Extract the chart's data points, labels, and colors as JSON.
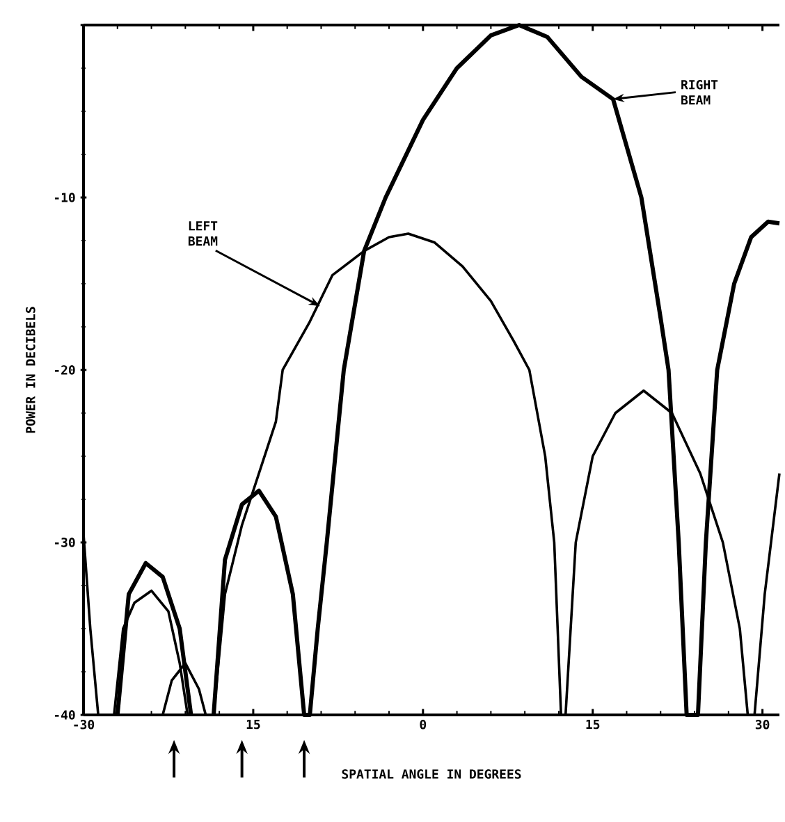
{
  "chart_data": {
    "type": "line",
    "xlabel": "SPATIAL ANGLE IN DEGREES",
    "ylabel": "POWER IN DECIBELS",
    "xlim": [
      -30,
      31.5
    ],
    "ylim": [
      -40,
      0
    ],
    "xticks": [
      -30,
      {
        "value": -15,
        "label": "15"
      },
      0,
      15,
      30
    ],
    "yticks": [
      {
        "value": 0,
        "label": null
      },
      -10,
      -20,
      -30,
      -40
    ],
    "grid": false,
    "marker": "none",
    "series": [
      {
        "color": "#000000",
        "line_style": "solid",
        "x": [
          -30,
          -29.4,
          -28.7,
          null,
          -27.3,
          -26.5,
          -25.5,
          -24,
          -22.5,
          -21.5,
          -20.8,
          null,
          -23,
          -22.2,
          -21,
          -19.8,
          -19.2,
          null,
          -18.5,
          -17.5,
          -16,
          -15,
          -13,
          -12.4,
          -10,
          -8,
          -5.2,
          -3,
          -1.3,
          1,
          3.5,
          6,
          8,
          9.4,
          10.8,
          11.6,
          12.2,
          12.6,
          13.5,
          15,
          17,
          19.5,
          22,
          24.5,
          26.5,
          28,
          28.7,
          null,
          29.3,
          30.2,
          31.5
        ],
        "values": [
          -29.5,
          -35,
          -40,
          null,
          -40,
          -35,
          -33.5,
          -32.8,
          -34,
          -37,
          -40,
          null,
          -40,
          -38,
          -37,
          -38.5,
          -40,
          null,
          -40,
          -33,
          -29,
          -27,
          -23,
          -20,
          -17.2,
          -14.5,
          -13.1,
          -12.3,
          -12.1,
          -12.6,
          -14,
          -16,
          -18.3,
          -20,
          -25,
          -30,
          -40,
          -40,
          -30,
          -25,
          -22.5,
          -21.2,
          -22.5,
          -26,
          -30,
          -35,
          -40,
          null,
          -40,
          -33,
          -26
        ]
      },
      {
        "color": "#000000",
        "line_style": "solid",
        "x": [
          -27,
          -26,
          -24.5,
          -23,
          -21.5,
          -20.5,
          null,
          -18.5,
          -17.5,
          -16,
          -14.5,
          -13,
          -11.5,
          -10.5,
          -10,
          -9.3,
          -8.5,
          -7,
          -5.2,
          -3.3,
          0,
          3,
          6,
          8.5,
          11,
          14,
          16.8,
          19.3,
          21,
          21.7,
          22.6,
          23.3,
          24.3,
          25,
          26,
          27.5,
          29,
          30.5,
          31.5
        ],
        "values": [
          -40,
          -33,
          -31.2,
          -32,
          -35,
          -40,
          null,
          -40,
          -31,
          -27.8,
          -27,
          -28.5,
          -33,
          -40,
          -40,
          -35,
          -30,
          -20,
          -13.1,
          -10,
          -5.5,
          -2.5,
          -0.6,
          0,
          -0.7,
          -3,
          -4.3,
          -10,
          -17,
          -20,
          -30,
          -40,
          -40,
          -30,
          -20,
          -15,
          -12.3,
          -11.4,
          -11.5
        ]
      }
    ],
    "annotations": [
      {
        "text": "LEFT BEAM",
        "x": -9.1,
        "y": -16.3
      },
      {
        "text": "RIGHT BEAM",
        "x": 16.8,
        "y": -4.3
      }
    ]
  }
}
